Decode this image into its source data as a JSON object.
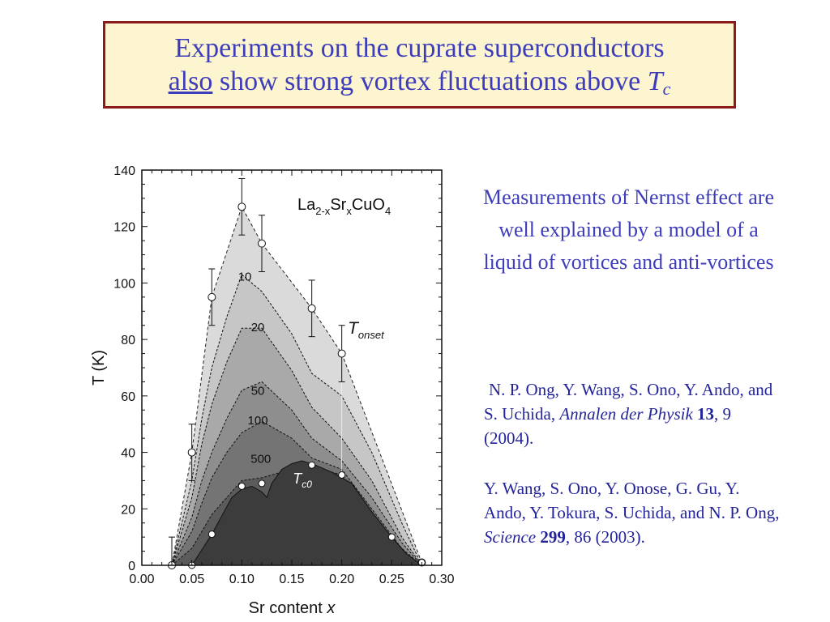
{
  "slide": {
    "title_line1": "Experiments on the cuprate superconductors",
    "title_also": "also",
    "title_rest": " show strong vortex fluctuations above ",
    "title_T": "T",
    "title_sub": "c",
    "summary": "Measurements of Nernst effect are well explained by a model of a liquid of vortices and anti-vortices",
    "colors": {
      "title_text": "#3d3dbb",
      "title_bg": "#fdf5cf",
      "title_border": "#8b1a1a",
      "ref_text": "#24249a"
    }
  },
  "references": [
    {
      "authors": "N. P. Ong, Y. Wang, S. Ono, Y. Ando, and S. Uchida, ",
      "journal": "Annalen der Physik",
      "volume": "13",
      "rest": ", 9 (2004)."
    },
    {
      "authors": "Y. Wang, S. Ono, Y. Onose, G. Gu, Y. Ando, Y. Tokura, S. Uchida, and N. P. Ong, ",
      "journal": "Science",
      "volume": "299",
      "rest": ", 86 (2003)."
    }
  ],
  "chart_data": {
    "type": "area",
    "compound": {
      "base": "La",
      "sub1": "2-x",
      "mid": "Sr",
      "sub2": "x",
      "end": "CuO",
      "sub3": "4"
    },
    "ylabel": "T (K)",
    "xlabel": "Sr content",
    "xlabel_var": "x",
    "xlim": [
      0,
      0.3
    ],
    "ylim": [
      0,
      140
    ],
    "xticks": [
      "0.00",
      "0.05",
      "0.10",
      "0.15",
      "0.20",
      "0.25",
      "0.30"
    ],
    "yticks": [
      "0",
      "20",
      "40",
      "60",
      "80",
      "100",
      "120",
      "140"
    ],
    "tonset": {
      "label_T": "T",
      "label_sub": "onset",
      "points": [
        {
          "x": 0.03,
          "y": 0,
          "err": 10
        },
        {
          "x": 0.05,
          "y": 40,
          "err": 10
        },
        {
          "x": 0.07,
          "y": 95,
          "err": 10
        },
        {
          "x": 0.1,
          "y": 127,
          "err": 10
        },
        {
          "x": 0.12,
          "y": 114,
          "err": 10
        },
        {
          "x": 0.17,
          "y": 91,
          "err": 10
        },
        {
          "x": 0.2,
          "y": 75,
          "err": 10
        },
        {
          "x": 0.28,
          "y": 1,
          "err": 0
        }
      ]
    },
    "tc0": {
      "label_T": "T",
      "label_sub": "c0",
      "points": [
        {
          "x": 0.05,
          "y": 0
        },
        {
          "x": 0.07,
          "y": 11
        },
        {
          "x": 0.1,
          "y": 28
        },
        {
          "x": 0.12,
          "y": 29
        },
        {
          "x": 0.17,
          "y": 35.5
        },
        {
          "x": 0.2,
          "y": 32
        },
        {
          "x": 0.25,
          "y": 10
        },
        {
          "x": 0.28,
          "y": 1
        }
      ],
      "boundary": [
        [
          0.03,
          0
        ],
        [
          0.05,
          0
        ],
        [
          0.07,
          11
        ],
        [
          0.09,
          24
        ],
        [
          0.1,
          27
        ],
        [
          0.11,
          28
        ],
        [
          0.12,
          26
        ],
        [
          0.125,
          24
        ],
        [
          0.13,
          29
        ],
        [
          0.14,
          34
        ],
        [
          0.15,
          36
        ],
        [
          0.16,
          37
        ],
        [
          0.17,
          36
        ],
        [
          0.18,
          34.5
        ],
        [
          0.19,
          33
        ],
        [
          0.2,
          31
        ],
        [
          0.21,
          29
        ],
        [
          0.23,
          19
        ],
        [
          0.25,
          10
        ],
        [
          0.265,
          4
        ],
        [
          0.28,
          0
        ]
      ]
    },
    "contours": [
      {
        "label": "10",
        "fill": "#c6c6c6",
        "points": [
          [
            0.03,
            0
          ],
          [
            0.05,
            30
          ],
          [
            0.06,
            52
          ],
          [
            0.07,
            70
          ],
          [
            0.085,
            88
          ],
          [
            0.1,
            103
          ],
          [
            0.12,
            97
          ],
          [
            0.15,
            82
          ],
          [
            0.17,
            68
          ],
          [
            0.2,
            60
          ],
          [
            0.23,
            40
          ],
          [
            0.26,
            15
          ],
          [
            0.28,
            0
          ]
        ]
      },
      {
        "label": "20",
        "fill": "#a9a9a9",
        "points": [
          [
            0.03,
            0
          ],
          [
            0.05,
            24
          ],
          [
            0.06,
            43
          ],
          [
            0.07,
            57
          ],
          [
            0.085,
            72
          ],
          [
            0.1,
            84
          ],
          [
            0.12,
            84
          ],
          [
            0.15,
            69
          ],
          [
            0.17,
            56
          ],
          [
            0.2,
            45
          ],
          [
            0.23,
            30
          ],
          [
            0.26,
            10
          ],
          [
            0.28,
            0
          ]
        ]
      },
      {
        "label": "50",
        "fill": "#8e8e8e",
        "points": [
          [
            0.03,
            0
          ],
          [
            0.05,
            17
          ],
          [
            0.06,
            30
          ],
          [
            0.07,
            40
          ],
          [
            0.085,
            52
          ],
          [
            0.1,
            62
          ],
          [
            0.12,
            65
          ],
          [
            0.15,
            55
          ],
          [
            0.17,
            45
          ],
          [
            0.2,
            37
          ],
          [
            0.23,
            24
          ],
          [
            0.26,
            8
          ],
          [
            0.28,
            0
          ]
        ]
      },
      {
        "label": "100",
        "fill": "#747474",
        "points": [
          [
            0.03,
            0
          ],
          [
            0.05,
            12
          ],
          [
            0.06,
            22
          ],
          [
            0.07,
            31
          ],
          [
            0.085,
            40
          ],
          [
            0.1,
            47
          ],
          [
            0.12,
            51
          ],
          [
            0.15,
            45
          ],
          [
            0.17,
            38
          ],
          [
            0.2,
            34
          ],
          [
            0.23,
            20
          ],
          [
            0.26,
            6
          ],
          [
            0.28,
            0
          ]
        ]
      },
      {
        "label": "500",
        "fill": "#5b5b5b",
        "points": [
          [
            0.03,
            0
          ],
          [
            0.05,
            6
          ],
          [
            0.06,
            12
          ],
          [
            0.07,
            18
          ],
          [
            0.085,
            24
          ],
          [
            0.1,
            30
          ],
          [
            0.12,
            31
          ],
          [
            0.15,
            34
          ],
          [
            0.17,
            35
          ],
          [
            0.2,
            32
          ],
          [
            0.23,
            18
          ],
          [
            0.26,
            5
          ],
          [
            0.28,
            0
          ]
        ]
      }
    ],
    "contour_labels": [
      {
        "text": "10",
        "x": 0.103,
        "y": 102
      },
      {
        "text": "20",
        "x": 0.116,
        "y": 84
      },
      {
        "text": "50",
        "x": 0.116,
        "y": 61.5
      },
      {
        "text": "100",
        "x": 0.116,
        "y": 51
      },
      {
        "text": "500",
        "x": 0.119,
        "y": 37.5
      }
    ],
    "tonset_label_pos": {
      "x": 0.206,
      "y": 82
    },
    "tc0_label_pos": {
      "x": 0.151,
      "y": 29
    },
    "tc0_fill": "#3c3c3c",
    "outer_fill": "#dadada",
    "grid": false
  }
}
